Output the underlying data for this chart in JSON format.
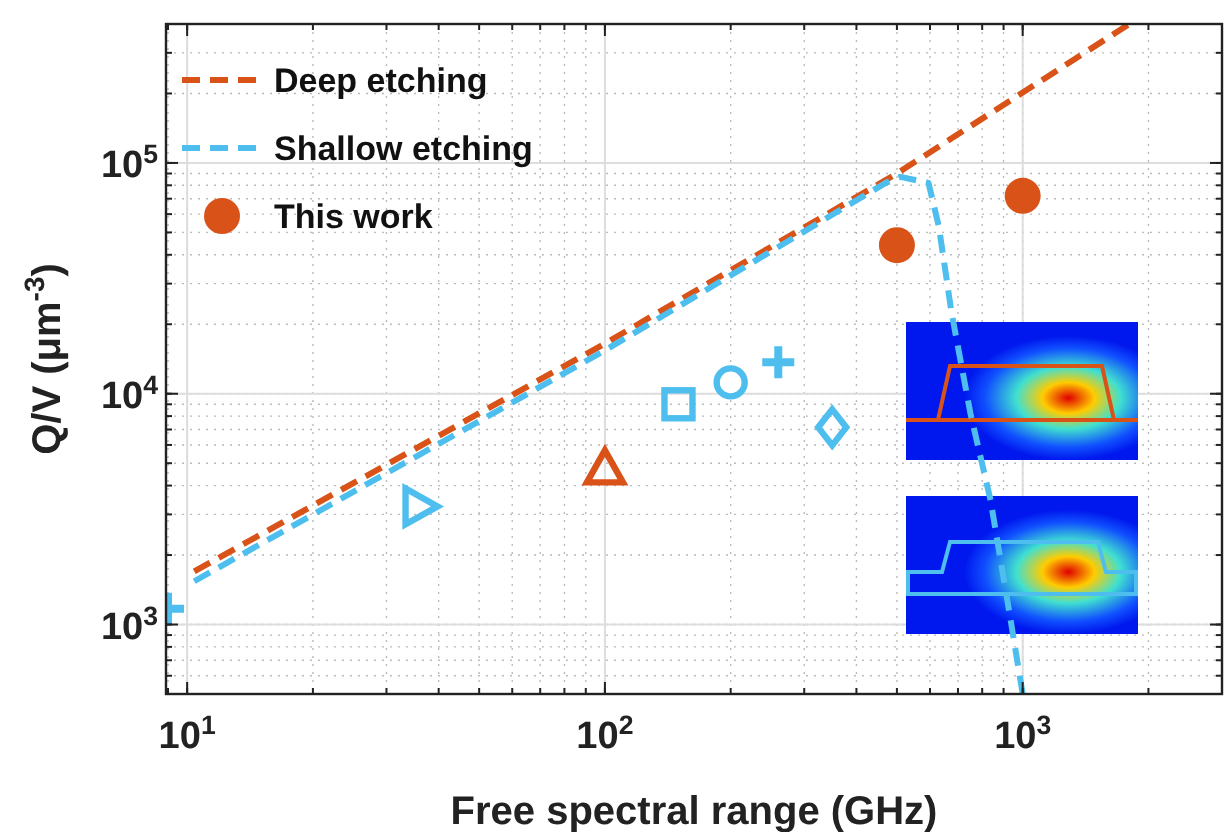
{
  "chart_data": {
    "type": "scatter",
    "xlabel": "Free spectral range (GHz)",
    "ylabel": "Q/V (μm$^{-3}$)",
    "log": "xy",
    "grid": true,
    "legend": "top left",
    "xlim": [
      8.9,
      3000
    ],
    "ylim": [
      500,
      400000
    ],
    "xticks": [
      {
        "value": 10,
        "label": "10$^{1}$"
      },
      {
        "value": 100,
        "label": "10$^{2}$"
      },
      {
        "value": 1000,
        "label": "10$^{3}$"
      }
    ],
    "yticks": [
      {
        "value": 1000,
        "label": "10$^{3}$"
      },
      {
        "value": 10000,
        "label": "10$^{4}$"
      },
      {
        "value": 100000,
        "label": "10$^{5}$"
      }
    ],
    "series": [
      {
        "name": "Deep etching",
        "type": "line",
        "line_style": "dashed",
        "color": "#d95319",
        "x": [
          10.4,
          100,
          500,
          1800
        ],
        "values": [
          1700,
          16500,
          90000,
          400000
        ]
      },
      {
        "name": "Shallow etching",
        "type": "line",
        "line_style": "dashed",
        "color": "#4dbeee",
        "x": [
          10.4,
          100,
          470,
          510,
          595,
          630,
          675,
          750,
          838,
          933,
          1000
        ],
        "values": [
          1540,
          15400,
          82000,
          87000,
          82000,
          53000,
          22700,
          8200,
          3450,
          1080,
          500
        ]
      },
      {
        "name": "This work",
        "type": "scatter",
        "marker": "circle",
        "color": "#d95319",
        "x": [
          500,
          1000
        ],
        "values": [
          44000,
          72000
        ]
      },
      {
        "type": "scatter",
        "marker": "cross",
        "color": "#4dbeee",
        "x": [
          9
        ],
        "values": [
          1170
        ]
      },
      {
        "type": "scatter",
        "marker": "triangle-right",
        "color": "#4dbeee",
        "x": [
          36
        ],
        "values": [
          3250
        ]
      },
      {
        "type": "scatter",
        "marker": "triangle",
        "color": "#d95319",
        "x": [
          100
        ],
        "values": [
          4750
        ]
      },
      {
        "type": "scatter",
        "marker": "square",
        "color": "#4dbeee",
        "x": [
          150
        ],
        "values": [
          9000
        ]
      },
      {
        "type": "scatter",
        "marker": "circle-open",
        "color": "#4dbeee",
        "x": [
          200
        ],
        "values": [
          11200
        ]
      },
      {
        "type": "scatter",
        "marker": "cross",
        "color": "#4dbeee",
        "x": [
          260
        ],
        "values": [
          13700
        ]
      },
      {
        "type": "scatter",
        "marker": "diamond",
        "color": "#4dbeee",
        "x": [
          350
        ],
        "values": [
          7150
        ]
      }
    ]
  }
}
